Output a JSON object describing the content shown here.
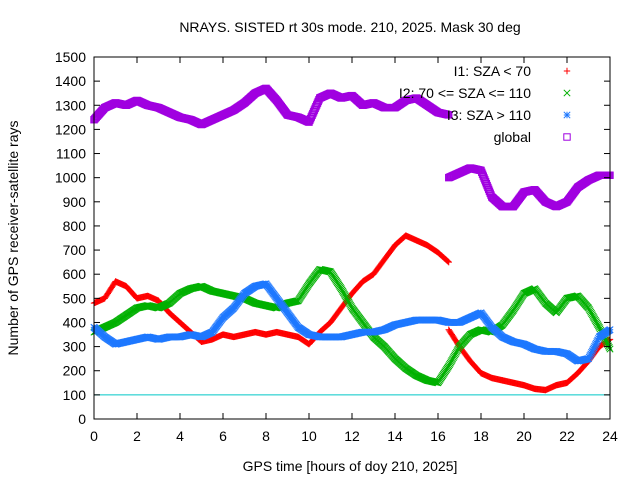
{
  "chart_data": {
    "type": "scatter",
    "title": "NRAYS. SISTED rt 30s mode. 210, 2025. Mask 30 deg",
    "xlabel": "GPS time [hours of doy 210, 2025]",
    "ylabel": "Number of GPS receiver-satellite rays",
    "xlim": [
      0,
      24
    ],
    "ylim": [
      0,
      1500
    ],
    "x_ticks": [
      0,
      2,
      4,
      6,
      8,
      10,
      12,
      14,
      16,
      18,
      20,
      22,
      24
    ],
    "y_ticks": [
      0,
      100,
      200,
      300,
      400,
      500,
      600,
      700,
      800,
      900,
      1000,
      1100,
      1200,
      1300,
      1400,
      1500
    ],
    "grid": false,
    "legend_position": "top-right",
    "threshold_line": {
      "value": 100,
      "color": "#00c8c8"
    },
    "series": [
      {
        "name": "I1: SZA < 70",
        "marker": "+",
        "color": "#ff0000",
        "x": [
          0,
          0.5,
          1,
          1.5,
          2,
          2.5,
          3,
          3.5,
          4,
          4.5,
          5,
          5.5,
          6,
          6.5,
          7,
          7.5,
          8,
          8.5,
          9,
          9.5,
          10,
          10.5,
          11,
          11.5,
          12,
          12.5,
          13,
          13.5,
          14,
          14.5,
          15,
          15.5,
          16,
          16.5
        ],
        "y": [
          480,
          500,
          570,
          550,
          500,
          510,
          490,
          440,
          400,
          360,
          320,
          330,
          350,
          340,
          350,
          360,
          350,
          360,
          350,
          340,
          310,
          360,
          400,
          460,
          520,
          570,
          600,
          660,
          720,
          760,
          740,
          720,
          690,
          650
        ]
      },
      {
        "name": "I1: SZA < 70 ",
        "marker": "+",
        "color": "#ff0000",
        "x": [
          16.5,
          17,
          17.5,
          18,
          18.5,
          19,
          19.5,
          20,
          20.5,
          21,
          21.5,
          22,
          22.5,
          23,
          23.5,
          24
        ],
        "y": [
          370,
          300,
          240,
          190,
          170,
          160,
          150,
          140,
          125,
          120,
          140,
          150,
          190,
          240,
          300,
          330
        ]
      },
      {
        "name": "I2: 70 <= SZA <= 110",
        "marker": "x",
        "color": "#00b000",
        "x": [
          0,
          0.5,
          1,
          1.5,
          2,
          2.5,
          3,
          3.5,
          4,
          4.5,
          5,
          5.5,
          6,
          6.5,
          7,
          7.5,
          8,
          8.5,
          9,
          9.5,
          10,
          10.5,
          11,
          11.5,
          12,
          12.5,
          13,
          13.5,
          14,
          14.5,
          15,
          15.5,
          16,
          16.5,
          17,
          17.5,
          18,
          18.5,
          19,
          19.5,
          20,
          20.5,
          21,
          21.5,
          22,
          22.5,
          23,
          23.5,
          24
        ],
        "y": [
          360,
          380,
          400,
          430,
          460,
          470,
          460,
          480,
          520,
          540,
          550,
          530,
          520,
          510,
          500,
          480,
          470,
          460,
          480,
          490,
          560,
          620,
          610,
          540,
          460,
          400,
          340,
          300,
          250,
          210,
          180,
          160,
          150,
          220,
          300,
          350,
          370,
          360,
          390,
          450,
          520,
          540,
          480,
          440,
          500,
          510,
          460,
          380,
          290
        ]
      },
      {
        "name": "I3: SZA > 110",
        "marker": "*",
        "color": "#1e78ff",
        "x": [
          0,
          0.5,
          1,
          1.5,
          2,
          2.5,
          3,
          3.5,
          4,
          4.5,
          5,
          5.5,
          6,
          6.5,
          7,
          7.5,
          8,
          8.5,
          9,
          9.5,
          10,
          10.5,
          11,
          11.5,
          12,
          12.5,
          13,
          13.5,
          14,
          14.5,
          15,
          15.5,
          16,
          16.5,
          17,
          17.5,
          18,
          18.5,
          19,
          19.5,
          20,
          20.5,
          21,
          21.5,
          22,
          22.5,
          23,
          23.5,
          24
        ],
        "y": [
          380,
          340,
          310,
          320,
          330,
          340,
          330,
          340,
          340,
          350,
          340,
          360,
          420,
          460,
          520,
          550,
          560,
          500,
          440,
          380,
          350,
          340,
          340,
          340,
          350,
          360,
          360,
          370,
          390,
          400,
          410,
          410,
          410,
          400,
          400,
          420,
          440,
          380,
          340,
          320,
          310,
          290,
          280,
          280,
          270,
          240,
          250,
          340,
          370
        ]
      },
      {
        "name": "global",
        "marker": "square",
        "color": "#a000e0",
        "x": [
          0,
          0.5,
          1,
          1.5,
          2,
          2.5,
          3,
          3.5,
          4,
          4.5,
          5,
          5.5,
          6,
          6.5,
          7,
          7.5,
          8,
          8.5,
          9,
          9.5,
          10,
          10.5,
          11,
          11.5,
          12,
          12.5,
          13,
          13.5,
          14,
          14.5,
          15,
          15.5,
          16,
          16.5
        ],
        "y": [
          1240,
          1290,
          1310,
          1300,
          1320,
          1300,
          1290,
          1270,
          1250,
          1240,
          1220,
          1240,
          1260,
          1280,
          1310,
          1350,
          1370,
          1320,
          1260,
          1250,
          1230,
          1330,
          1350,
          1330,
          1340,
          1300,
          1310,
          1290,
          1290,
          1320,
          1330,
          1300,
          1270,
          1260
        ]
      },
      {
        "name": "global ",
        "marker": "square",
        "color": "#a000e0",
        "x": [
          16.5,
          17,
          17.5,
          18,
          18.5,
          19,
          19.5,
          20,
          20.5,
          21,
          21.5,
          22,
          22.5,
          23,
          23.5,
          24
        ],
        "y": [
          1000,
          1020,
          1040,
          1030,
          920,
          880,
          880,
          940,
          950,
          900,
          880,
          900,
          960,
          990,
          1010,
          1010
        ]
      }
    ]
  }
}
